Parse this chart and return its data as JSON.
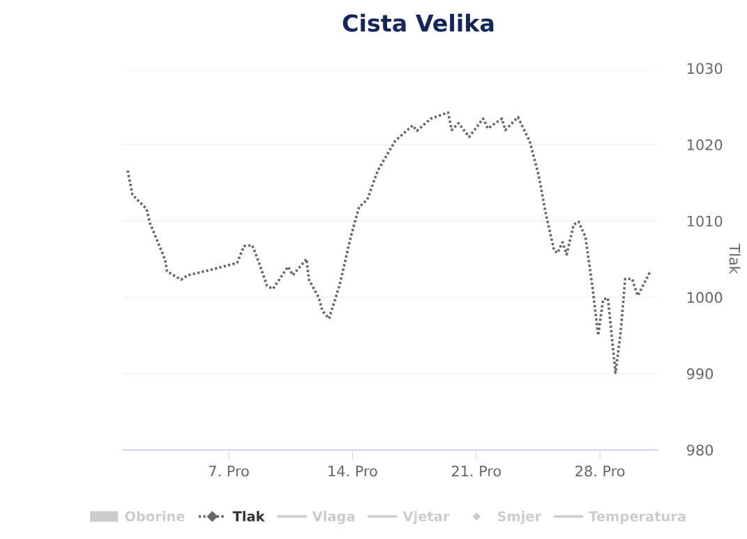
{
  "chart_data": {
    "type": "line",
    "title": "Cista Velika",
    "ylabel": "Tlak",
    "xlim": [
      1.0,
      31.23
    ],
    "ylim": [
      980,
      1030
    ],
    "xticks": [
      {
        "value": 7,
        "label": "7. Pro"
      },
      {
        "value": 14,
        "label": "14. Pro"
      },
      {
        "value": 21,
        "label": "21. Pro"
      },
      {
        "value": 28,
        "label": "28. Pro"
      }
    ],
    "yticks": [
      980,
      990,
      1000,
      1010,
      1020,
      1030
    ],
    "grid": "y",
    "legend": "bottom",
    "line_style": "dotted",
    "series": [
      {
        "name": "Oborine",
        "type": "bar",
        "color": "#cccccc"
      },
      {
        "name": "Tlak",
        "color": "#666666",
        "x": [
          1.28,
          1.55,
          2.34,
          2.54,
          3.4,
          3.5,
          4.3,
          4.7,
          6.0,
          7.47,
          7.86,
          8.33,
          8.65,
          9.16,
          9.5,
          10.35,
          10.62,
          11.4,
          11.53,
          12.08,
          12.3,
          12.67,
          13.26,
          13.9,
          14.37,
          14.84,
          15.43,
          16.42,
          17.4,
          17.64,
          18.43,
          19.41,
          19.61,
          20.0,
          20.6,
          21.39,
          21.66,
          22.45,
          22.65,
          23.36,
          24.03,
          24.54,
          24.94,
          25.41,
          25.6,
          25.88,
          26.12,
          26.51,
          26.79,
          27.18,
          27.58,
          27.9,
          28.18,
          28.45,
          28.88,
          29.16,
          29.43,
          29.82,
          30.14,
          30.85
        ],
        "values": [
          1016.6,
          1013.4,
          1011.6,
          1009.7,
          1004.9,
          1003.4,
          1002.3,
          1002.9,
          1003.6,
          1004.5,
          1006.7,
          1006.8,
          1004.9,
          1001.5,
          1001.1,
          1004.0,
          1002.9,
          1005.0,
          1002.3,
          1000.0,
          998.2,
          997.2,
          1001.5,
          1007.9,
          1011.8,
          1012.8,
          1016.6,
          1020.5,
          1022.5,
          1021.8,
          1023.4,
          1024.2,
          1021.9,
          1022.8,
          1021.0,
          1023.4,
          1022.1,
          1023.4,
          1021.9,
          1023.6,
          1020.4,
          1015.9,
          1010.9,
          1006.1,
          1005.8,
          1007.2,
          1005.6,
          1009.5,
          1009.9,
          1007.9,
          1001.3,
          995.0,
          999.7,
          999.9,
          990.1,
          995.1,
          1002.4,
          1002.4,
          1000.2,
          1003.4
        ]
      },
      {
        "name": "Vlaga",
        "type": "line",
        "color": "#cccccc"
      },
      {
        "name": "Vjetar",
        "type": "line",
        "color": "#cccccc"
      },
      {
        "name": "Smjer",
        "type": "scatter",
        "color": "#cccccc"
      },
      {
        "name": "Temperatura",
        "type": "line",
        "color": "#cccccc"
      }
    ]
  }
}
